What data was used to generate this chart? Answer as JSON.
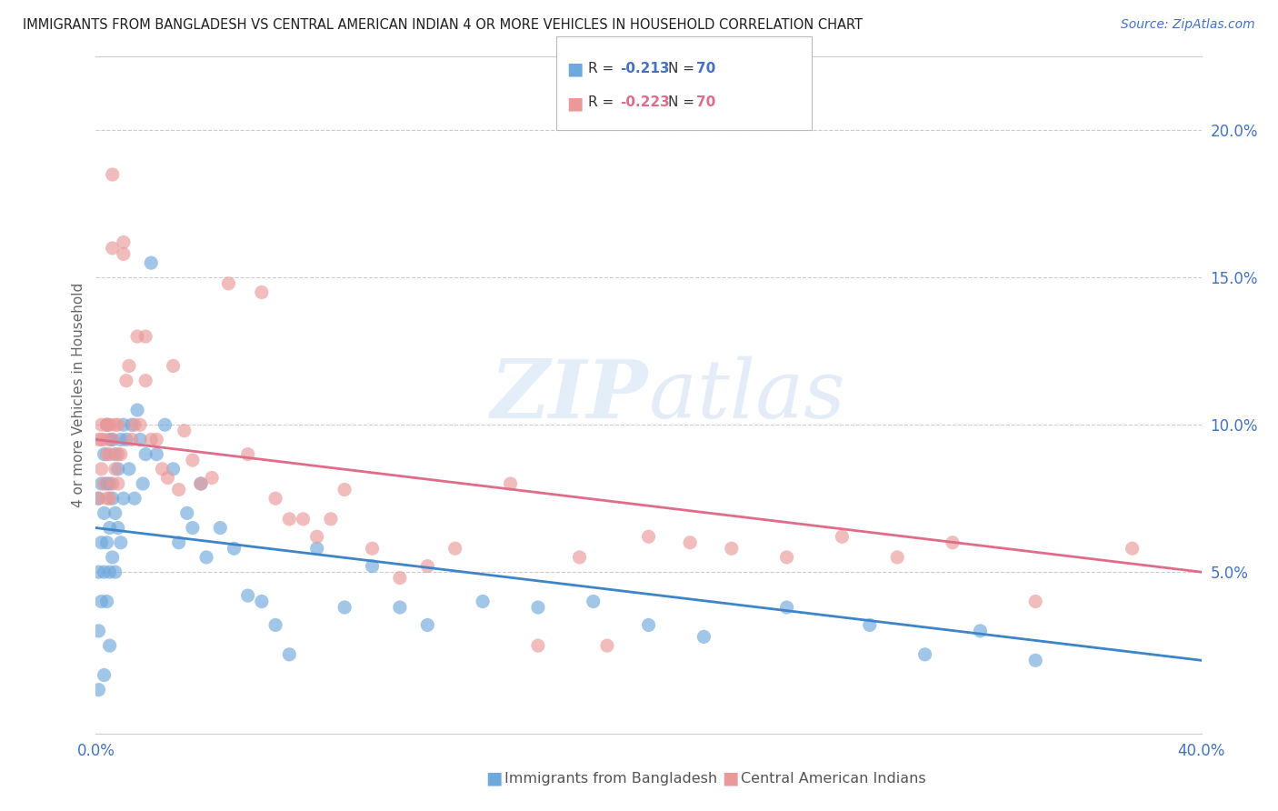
{
  "title": "IMMIGRANTS FROM BANGLADESH VS CENTRAL AMERICAN INDIAN 4 OR MORE VEHICLES IN HOUSEHOLD CORRELATION CHART",
  "source": "Source: ZipAtlas.com",
  "ylabel": "4 or more Vehicles in Household",
  "xlim": [
    0.0,
    0.4
  ],
  "ylim": [
    -0.005,
    0.225
  ],
  "yticks": [
    0.05,
    0.1,
    0.15,
    0.2
  ],
  "ytick_labels": [
    "5.0%",
    "10.0%",
    "15.0%",
    "20.0%"
  ],
  "blue_R": "-0.213",
  "blue_N": "70",
  "pink_R": "-0.223",
  "pink_N": "70",
  "blue_label": "Immigrants from Bangladesh",
  "pink_label": "Central American Indians",
  "blue_color": "#6fa8dc",
  "pink_color": "#ea9999",
  "blue_line_color": "#3d85c8",
  "pink_line_color": "#e06c8a",
  "tick_color": "#4472c4",
  "grid_color": "#cccccc",
  "title_color": "#1f1f1f",
  "ylabel_color": "#666666",
  "blue_x": [
    0.001,
    0.001,
    0.001,
    0.002,
    0.002,
    0.002,
    0.003,
    0.003,
    0.003,
    0.004,
    0.004,
    0.004,
    0.004,
    0.005,
    0.005,
    0.005,
    0.005,
    0.005,
    0.006,
    0.006,
    0.006,
    0.007,
    0.007,
    0.007,
    0.008,
    0.008,
    0.009,
    0.009,
    0.01,
    0.01,
    0.011,
    0.012,
    0.013,
    0.014,
    0.015,
    0.016,
    0.017,
    0.018,
    0.02,
    0.022,
    0.025,
    0.028,
    0.03,
    0.033,
    0.035,
    0.038,
    0.04,
    0.045,
    0.05,
    0.055,
    0.06,
    0.065,
    0.07,
    0.08,
    0.09,
    0.1,
    0.11,
    0.12,
    0.14,
    0.16,
    0.18,
    0.2,
    0.22,
    0.25,
    0.28,
    0.3,
    0.32,
    0.34,
    0.001,
    0.003
  ],
  "blue_y": [
    0.075,
    0.05,
    0.03,
    0.08,
    0.06,
    0.04,
    0.09,
    0.07,
    0.05,
    0.1,
    0.08,
    0.06,
    0.04,
    0.095,
    0.08,
    0.065,
    0.05,
    0.025,
    0.095,
    0.075,
    0.055,
    0.09,
    0.07,
    0.05,
    0.085,
    0.065,
    0.095,
    0.06,
    0.1,
    0.075,
    0.095,
    0.085,
    0.1,
    0.075,
    0.105,
    0.095,
    0.08,
    0.09,
    0.155,
    0.09,
    0.1,
    0.085,
    0.06,
    0.07,
    0.065,
    0.08,
    0.055,
    0.065,
    0.058,
    0.042,
    0.04,
    0.032,
    0.022,
    0.058,
    0.038,
    0.052,
    0.038,
    0.032,
    0.04,
    0.038,
    0.04,
    0.032,
    0.028,
    0.038,
    0.032,
    0.022,
    0.03,
    0.02,
    0.01,
    0.015
  ],
  "pink_x": [
    0.001,
    0.001,
    0.002,
    0.002,
    0.002,
    0.003,
    0.003,
    0.004,
    0.004,
    0.004,
    0.005,
    0.005,
    0.005,
    0.006,
    0.006,
    0.006,
    0.006,
    0.007,
    0.007,
    0.008,
    0.008,
    0.008,
    0.009,
    0.01,
    0.01,
    0.011,
    0.012,
    0.013,
    0.014,
    0.015,
    0.016,
    0.018,
    0.018,
    0.02,
    0.022,
    0.024,
    0.026,
    0.028,
    0.03,
    0.032,
    0.035,
    0.038,
    0.042,
    0.048,
    0.055,
    0.06,
    0.065,
    0.07,
    0.075,
    0.08,
    0.085,
    0.09,
    0.1,
    0.11,
    0.12,
    0.13,
    0.15,
    0.16,
    0.175,
    0.185,
    0.2,
    0.215,
    0.23,
    0.25,
    0.27,
    0.29,
    0.31,
    0.34,
    0.375,
    0.004
  ],
  "pink_y": [
    0.095,
    0.075,
    0.095,
    0.085,
    0.1,
    0.095,
    0.08,
    0.1,
    0.09,
    0.075,
    0.1,
    0.09,
    0.075,
    0.16,
    0.185,
    0.095,
    0.08,
    0.1,
    0.085,
    0.1,
    0.09,
    0.08,
    0.09,
    0.162,
    0.158,
    0.115,
    0.12,
    0.095,
    0.1,
    0.13,
    0.1,
    0.13,
    0.115,
    0.095,
    0.095,
    0.085,
    0.082,
    0.12,
    0.078,
    0.098,
    0.088,
    0.08,
    0.082,
    0.148,
    0.09,
    0.145,
    0.075,
    0.068,
    0.068,
    0.062,
    0.068,
    0.078,
    0.058,
    0.048,
    0.052,
    0.058,
    0.08,
    0.025,
    0.055,
    0.025,
    0.062,
    0.06,
    0.058,
    0.055,
    0.062,
    0.055,
    0.06,
    0.04,
    0.058,
    0.1
  ]
}
